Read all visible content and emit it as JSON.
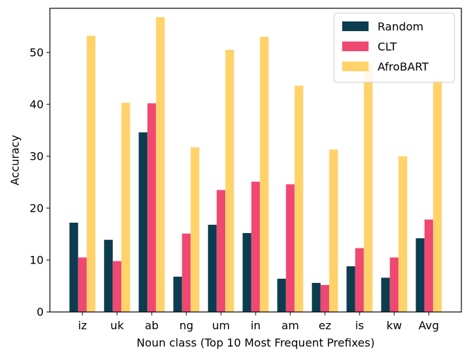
{
  "chart_data": {
    "type": "bar",
    "xlabel": "Noun class (Top 10 Most Frequent Prefixes)",
    "ylabel": "Accuracy",
    "ylim": [
      0,
      58.5
    ],
    "yticks": [
      0,
      10,
      20,
      30,
      40,
      50
    ],
    "categories": [
      "iz",
      "uk",
      "ab",
      "ng",
      "um",
      "in",
      "am",
      "ez",
      "is",
      "kw",
      "Avg"
    ],
    "legend_position": "top-right",
    "series": [
      {
        "name": "Random",
        "color": "#0b3c4f",
        "values": [
          17.2,
          13.9,
          34.6,
          6.8,
          16.8,
          15.2,
          6.4,
          5.6,
          8.8,
          6.6,
          14.2
        ]
      },
      {
        "name": "CLT",
        "color": "#ef4971",
        "values": [
          10.5,
          9.8,
          40.2,
          15.1,
          23.5,
          25.1,
          24.6,
          5.2,
          12.3,
          10.5,
          17.8
        ]
      },
      {
        "name": "AfroBART",
        "color": "#ffd26a",
        "values": [
          53.2,
          40.3,
          56.8,
          31.7,
          50.5,
          53.0,
          43.6,
          31.3,
          47.6,
          30.0,
          44.8
        ]
      }
    ]
  }
}
